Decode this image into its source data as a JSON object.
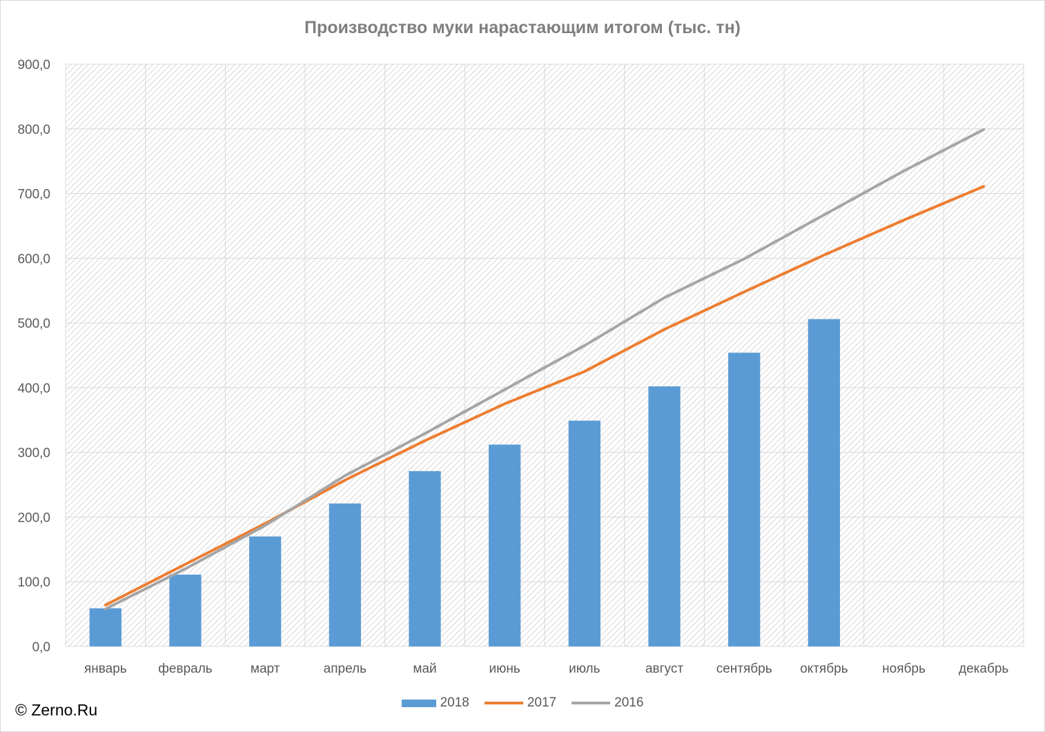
{
  "chart_data": {
    "type": "bar",
    "title": "Производство муки нарастающим итогом (тыс. тн)",
    "categories": [
      "январь",
      "февраль",
      "март",
      "апрель",
      "май",
      "июнь",
      "июль",
      "август",
      "сентябрь",
      "октябрь",
      "ноябрь",
      "декабрь"
    ],
    "ylim": [
      0,
      900
    ],
    "y_ticks": [
      "0,0",
      "100,0",
      "200,0",
      "300,0",
      "400,0",
      "500,0",
      "600,0",
      "700,0",
      "800,0",
      "900,0"
    ],
    "grid": true,
    "legend_position": "bottom",
    "series": [
      {
        "name": "2018",
        "kind": "bar",
        "color": "#5b9bd5",
        "values": [
          59,
          111,
          170,
          221,
          271,
          312,
          349,
          402,
          454,
          506,
          null,
          null
        ]
      },
      {
        "name": "2017",
        "kind": "line",
        "color": "#ed7d31",
        "values": [
          64,
          127,
          190,
          257,
          318,
          375,
          425,
          490,
          548,
          605,
          659,
          711
        ]
      },
      {
        "name": "2016",
        "kind": "line",
        "color": "#a5a5a5",
        "values": [
          58,
          120,
          187,
          264,
          329,
          397,
          465,
          539,
          599,
          667,
          735,
          799
        ]
      }
    ]
  },
  "footer": {
    "copyright": "© Zerno.Ru"
  }
}
